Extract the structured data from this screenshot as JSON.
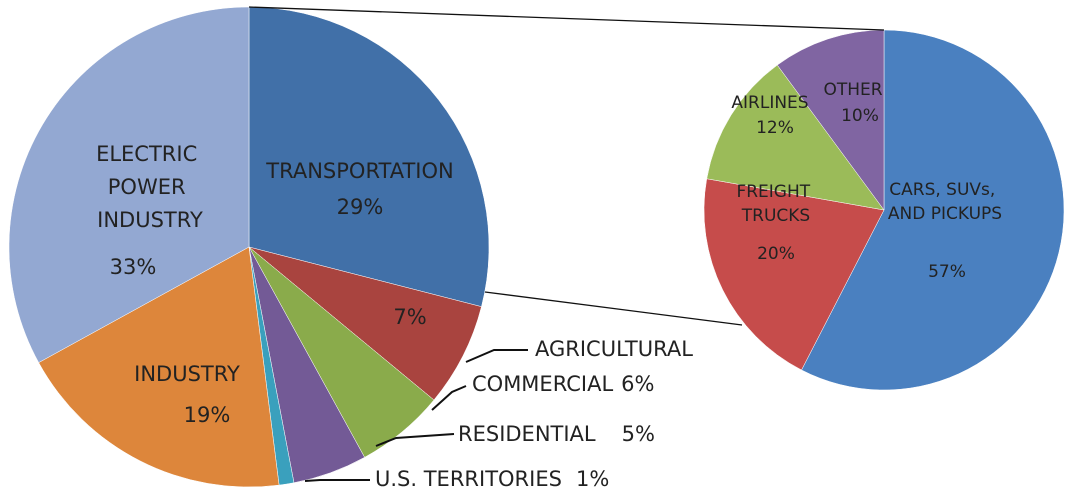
{
  "chart_data": [
    {
      "type": "pie",
      "categories": [
        "TRANSPORTATION",
        "AGRICULTURAL",
        "COMMERCIAL",
        "RESIDENTIAL",
        "U.S. TERRITORIES",
        "INDUSTRY",
        "ELECTRIC POWER INDUSTRY"
      ],
      "values": [
        29,
        7,
        6,
        5,
        1,
        19,
        33
      ],
      "value_labels": [
        "29%",
        "7%",
        "6%",
        "5%",
        "1%",
        "19%",
        "33%"
      ],
      "colors": [
        "#4170a8",
        "#a9443f",
        "#8aab4b",
        "#735a96",
        "#3aa0bd",
        "#dd863b",
        "#93a8d2"
      ]
    },
    {
      "type": "pie",
      "categories": [
        "CARS, SUVs, AND PICKUPS",
        "FREIGHT TRUCKS",
        "AIRLINES",
        "OTHER"
      ],
      "values": [
        57,
        20,
        12,
        10
      ],
      "value_labels": [
        "57%",
        "20%",
        "12%",
        "10%"
      ],
      "colors": [
        "#4a80c0",
        "#c64c4b",
        "#9bbb59",
        "#8065a2"
      ]
    }
  ]
}
